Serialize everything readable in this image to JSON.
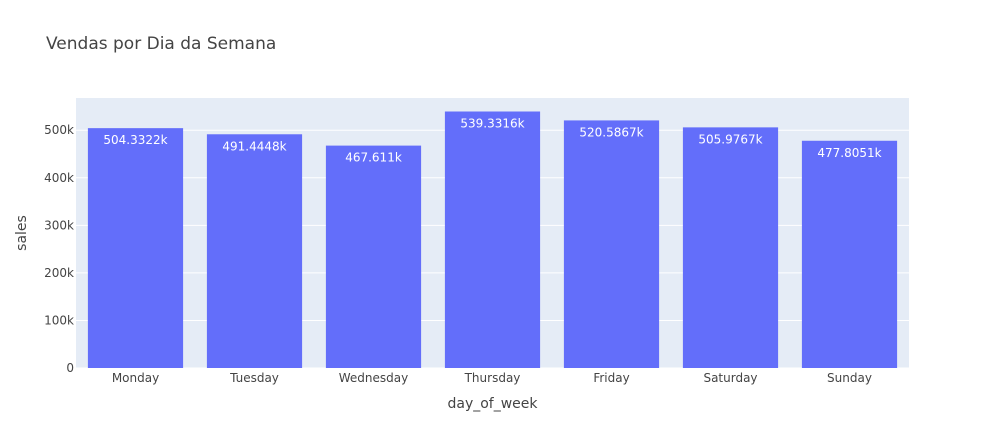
{
  "chart_data": {
    "type": "bar",
    "title": "Vendas por Dia da Semana",
    "xlabel": "day_of_week",
    "ylabel": "sales",
    "categories": [
      "Monday",
      "Tuesday",
      "Wednesday",
      "Thursday",
      "Friday",
      "Saturday",
      "Sunday"
    ],
    "values": [
      504332.2,
      491444.8,
      467611,
      539331.6,
      520586.7,
      505976.7,
      477805.1
    ],
    "data_labels": [
      "504.3322k",
      "491.4448k",
      "467.611k",
      "539.3316k",
      "520.5867k",
      "505.9767k",
      "477.8051k"
    ],
    "y_ticks": [
      0,
      100000,
      200000,
      300000,
      400000,
      500000
    ],
    "y_tick_labels": [
      "0",
      "100k",
      "200k",
      "300k",
      "400k",
      "500k"
    ],
    "ylim": [
      0,
      567717.5
    ],
    "grid": true,
    "legend": "none",
    "colors": {
      "bar": "#636efa",
      "plot_background": "#e5ecf6",
      "grid": "#ffffff",
      "text": "#444444",
      "bar_label": "#ffffff"
    }
  }
}
